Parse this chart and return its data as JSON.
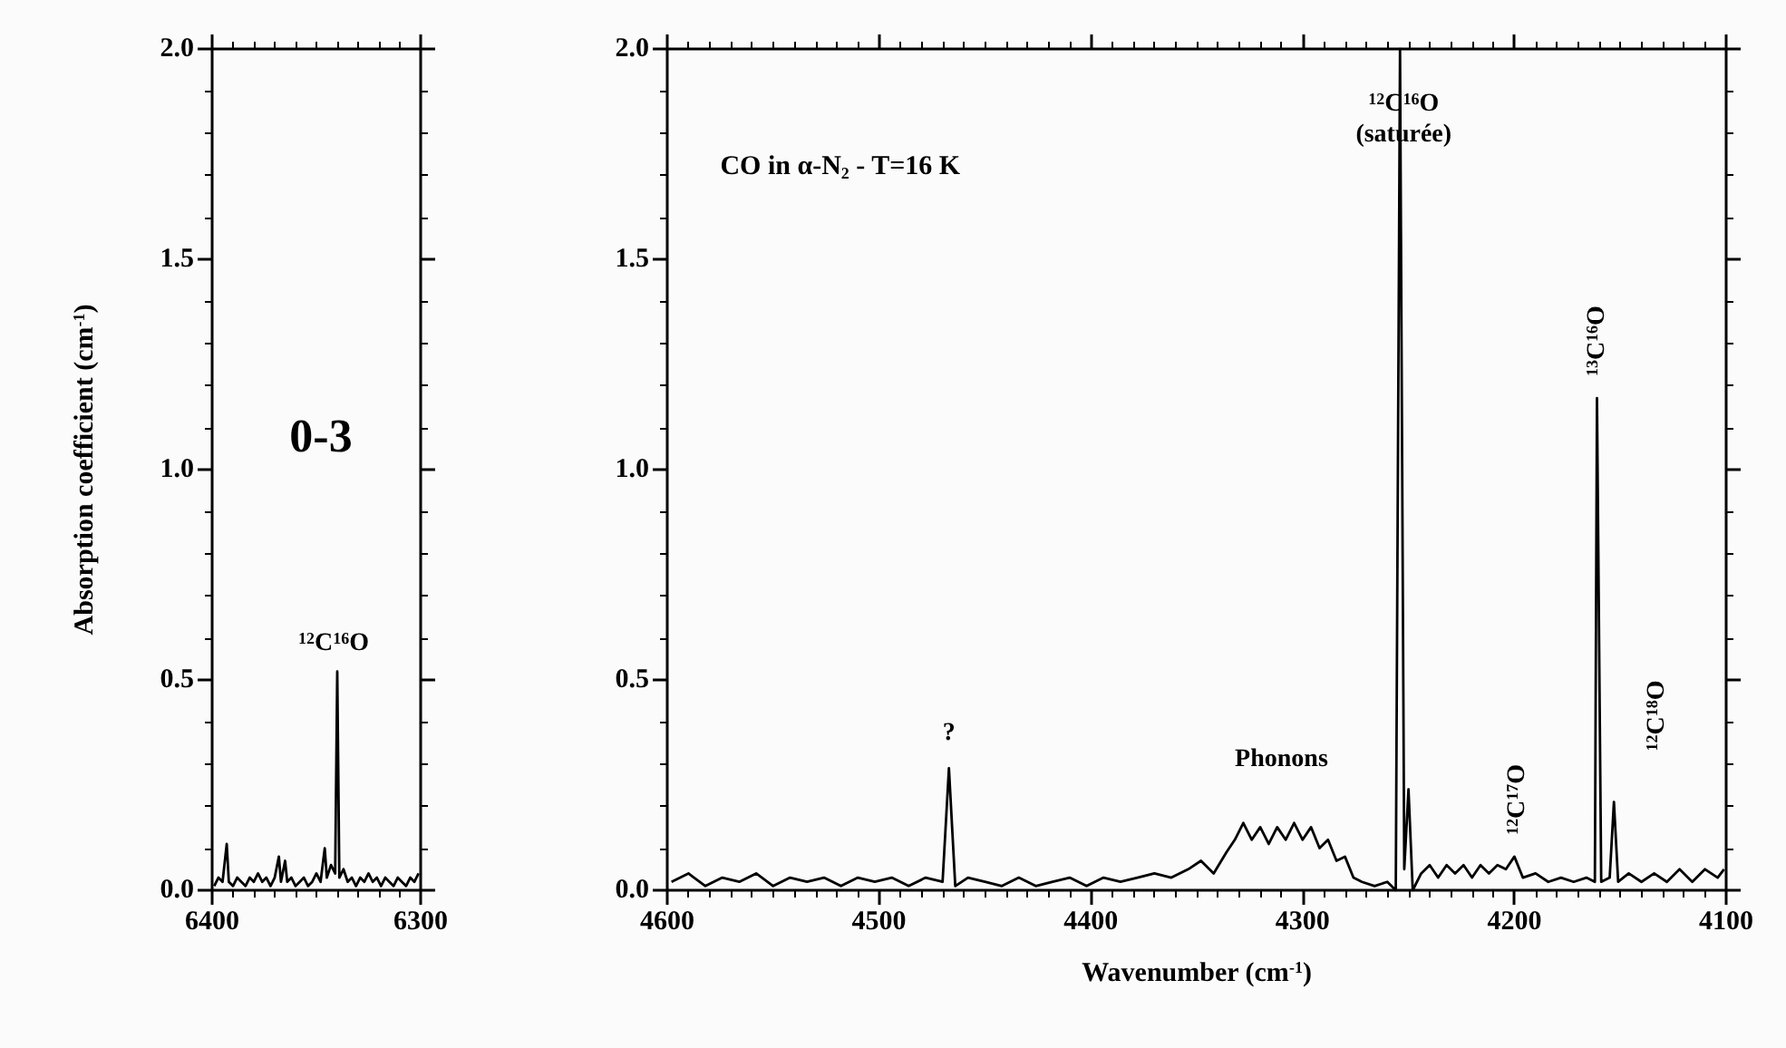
{
  "chart_data": [
    {
      "type": "line",
      "ylabel": "Absorption coefficient (cm$^{-1}$)",
      "xlim": [
        6400,
        6300
      ],
      "xticks": [
        6400,
        6300
      ],
      "ylim": [
        0,
        2.0
      ],
      "yticks": [
        {
          "value": 0,
          "label": "0.0"
        },
        {
          "value": 0.5,
          "label": "0.5"
        },
        {
          "value": 1,
          "label": "1.0"
        },
        {
          "value": 1.5,
          "label": "1.5"
        },
        {
          "value": 2,
          "label": "2.0"
        }
      ],
      "annotations": [
        "0-3",
        {
          "text": "$^{12}$C$^{16}$O",
          "x": 6340,
          "y": 0.52
        }
      ],
      "marker": "none",
      "series": [
        {
          "color": "#000000",
          "x": [
            6399,
            6397,
            6395,
            6393,
            6392,
            6390,
            6388,
            6386,
            6384,
            6382,
            6380,
            6378,
            6376,
            6374,
            6372,
            6370,
            6368,
            6367,
            6365,
            6364,
            6362,
            6360,
            6358,
            6356,
            6354,
            6352,
            6350,
            6348,
            6346,
            6345,
            6343,
            6341,
            6340,
            6339,
            6337,
            6335,
            6333,
            6331,
            6329,
            6327,
            6325,
            6323,
            6321,
            6319,
            6317,
            6315,
            6313,
            6311,
            6309,
            6307,
            6305,
            6303,
            6301
          ],
          "values": [
            0.01,
            0.03,
            0.02,
            0.11,
            0.02,
            0.01,
            0.03,
            0.02,
            0.01,
            0.03,
            0.02,
            0.04,
            0.02,
            0.03,
            0.01,
            0.03,
            0.08,
            0.02,
            0.07,
            0.02,
            0.03,
            0.01,
            0.02,
            0.03,
            0.01,
            0.02,
            0.04,
            0.02,
            0.1,
            0.03,
            0.06,
            0.04,
            0.52,
            0.03,
            0.05,
            0.02,
            0.03,
            0.01,
            0.03,
            0.02,
            0.04,
            0.02,
            0.03,
            0.01,
            0.03,
            0.02,
            0.01,
            0.03,
            0.02,
            0.01,
            0.03,
            0.02,
            0.04
          ]
        }
      ]
    },
    {
      "type": "line",
      "xlabel": "Wavenumber (cm$^{-1}$)",
      "xlim": [
        4600,
        4100
      ],
      "xticks": [
        4600,
        4500,
        4400,
        4300,
        4200,
        4100
      ],
      "ylim": [
        0,
        2.0
      ],
      "yticks": [
        {
          "value": 0,
          "label": "0.0"
        },
        {
          "value": 0.5,
          "label": "0.5"
        },
        {
          "value": 1,
          "label": "1.0"
        },
        {
          "value": 1.5,
          "label": "1.5"
        },
        {
          "value": 2,
          "label": "2.0"
        }
      ],
      "annotations": [
        "CO in α-N$_{2}$ - T=16 K",
        {
          "text": "$^{12}$C$^{16}$O\n(saturée)",
          "x": 4254,
          "y": 2.0
        },
        {
          "text": "?",
          "x": 4467,
          "y": 0.29
        },
        {
          "text": "Phonons",
          "x": 4310,
          "y": 0.16
        },
        {
          "text": "$^{12}$C$^{17}$O",
          "x": 4200,
          "y": 0.08
        },
        {
          "text": "$^{13}$C$^{16}$O",
          "x": 4161,
          "y": 1.17
        },
        {
          "text": "$^{12}$C$^{18}$O",
          "x": 4153,
          "y": 0.21
        }
      ],
      "marker": "none",
      "series": [
        {
          "color": "#000000",
          "x": [
            4598,
            4590,
            4582,
            4574,
            4566,
            4558,
            4550,
            4542,
            4534,
            4526,
            4518,
            4510,
            4502,
            4494,
            4486,
            4478,
            4470,
            4467,
            4464,
            4458,
            4450,
            4442,
            4434,
            4426,
            4418,
            4410,
            4402,
            4394,
            4386,
            4378,
            4370,
            4362,
            4354,
            4348,
            4342,
            4336,
            4332,
            4328,
            4324,
            4320,
            4316,
            4312,
            4308,
            4304,
            4300,
            4296,
            4292,
            4288,
            4284,
            4280,
            4276,
            4272,
            4266,
            4260,
            4256,
            4254,
            4252,
            4250,
            4248,
            4244,
            4240,
            4236,
            4232,
            4228,
            4224,
            4220,
            4216,
            4212,
            4208,
            4204,
            4200,
            4196,
            4190,
            4184,
            4178,
            4172,
            4166,
            4162,
            4161,
            4159,
            4155,
            4153,
            4151,
            4146,
            4140,
            4134,
            4128,
            4122,
            4116,
            4110,
            4104,
            4101
          ],
          "values": [
            0.02,
            0.04,
            0.01,
            0.03,
            0.02,
            0.04,
            0.01,
            0.03,
            0.02,
            0.03,
            0.01,
            0.03,
            0.02,
            0.03,
            0.01,
            0.03,
            0.02,
            0.29,
            0.01,
            0.03,
            0.02,
            0.01,
            0.03,
            0.01,
            0.02,
            0.03,
            0.01,
            0.03,
            0.02,
            0.03,
            0.04,
            0.03,
            0.05,
            0.07,
            0.04,
            0.09,
            0.12,
            0.16,
            0.12,
            0.15,
            0.11,
            0.15,
            0.12,
            0.16,
            0.12,
            0.15,
            0.1,
            0.12,
            0.07,
            0.08,
            0.03,
            0.02,
            0.01,
            0.02,
            0.0,
            2.0,
            0.05,
            0.24,
            0.0,
            0.04,
            0.06,
            0.03,
            0.06,
            0.04,
            0.06,
            0.03,
            0.06,
            0.04,
            0.06,
            0.05,
            0.08,
            0.03,
            0.04,
            0.02,
            0.03,
            0.02,
            0.03,
            0.02,
            1.17,
            0.02,
            0.03,
            0.21,
            0.02,
            0.04,
            0.02,
            0.04,
            0.02,
            0.05,
            0.02,
            0.05,
            0.03,
            0.05
          ]
        }
      ]
    }
  ]
}
